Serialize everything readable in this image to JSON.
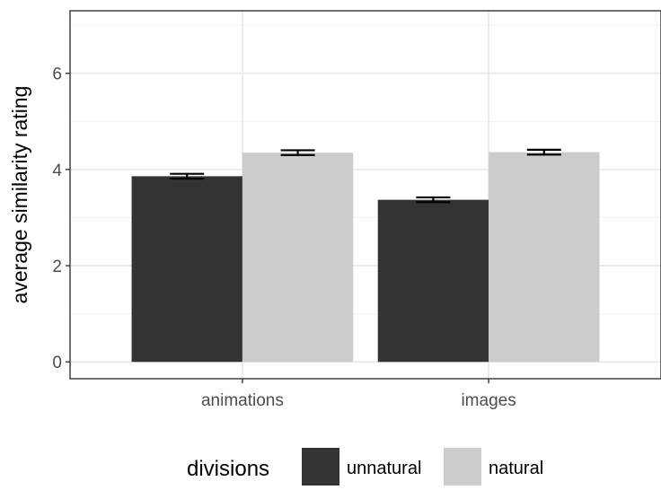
{
  "chart_data": {
    "type": "bar",
    "title": "",
    "xlabel": "",
    "ylabel": "average similarity rating",
    "categories": [
      "animations",
      "images"
    ],
    "ylim": [
      -0.35,
      7.3
    ],
    "yticks": [
      0,
      2,
      4,
      6
    ],
    "grid": true,
    "legend": {
      "title": "divisions",
      "placement": "bottom"
    },
    "series": [
      {
        "name": "unnatural",
        "color": "#333333",
        "values": [
          3.86,
          3.37
        ],
        "errors": [
          0.05,
          0.05
        ]
      },
      {
        "name": "natural",
        "color": "#cccccc",
        "values": [
          4.35,
          4.36
        ],
        "errors": [
          0.05,
          0.05
        ]
      }
    ]
  }
}
